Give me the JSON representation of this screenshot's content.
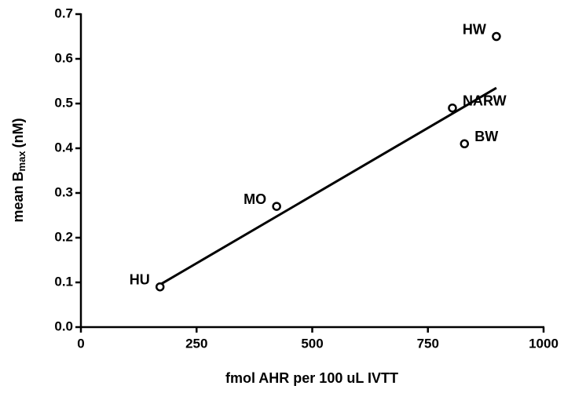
{
  "chart_data": {
    "type": "scatter",
    "xlabel": "fmol AHR per 100 uL IVTT",
    "ylabel": {
      "main": "mean B",
      "sub": "max",
      "unit": "(nM)"
    },
    "series": [
      {
        "color": "#000000",
        "x": [
          171,
          423,
          803,
          829,
          898
        ],
        "values": [
          0.09,
          0.27,
          0.49,
          0.41,
          0.65
        ],
        "labels": [
          "HU",
          "MO",
          "NARW",
          "BW",
          "HW"
        ]
      }
    ],
    "fit": {
      "x": [
        171,
        898
      ],
      "values": [
        0.095,
        0.535
      ],
      "color": "#000000"
    },
    "xlim": [
      0,
      1000
    ],
    "xticks": [
      0,
      250,
      500,
      750,
      1000
    ],
    "ylim": [
      0,
      0.7
    ],
    "yticks": [
      {
        "value": 0,
        "label": "0.0"
      },
      0.1,
      0.2,
      0.3,
      0.4,
      0.5,
      0.6,
      0.7
    ],
    "grid": false
  }
}
